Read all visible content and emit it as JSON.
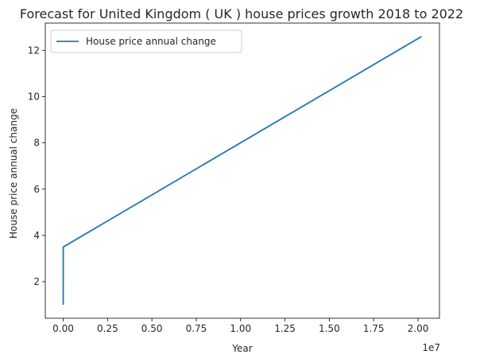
{
  "chart_data": {
    "type": "line",
    "title": "Forecast for United Kingdom ( UK ) house prices growth 2018 to 2022",
    "xlabel": "Year",
    "ylabel": "House price annual change",
    "x_offset_label": "1e7",
    "xlim": [
      -1010000,
      21210000
    ],
    "ylim": [
      0.42,
      13.18
    ],
    "x_ticks": [
      0,
      2500000,
      5000000,
      7500000,
      10000000,
      12500000,
      15000000,
      17500000,
      20000000
    ],
    "x_tick_labels": [
      "0.00",
      "0.25",
      "0.50",
      "0.75",
      "1.00",
      "1.25",
      "1.50",
      "1.75",
      "2.00"
    ],
    "y_ticks": [
      2,
      4,
      6,
      8,
      10,
      12
    ],
    "y_tick_labels": [
      "2",
      "4",
      "6",
      "8",
      "10",
      "12"
    ],
    "grid": false,
    "legend_position": "top-left",
    "series": [
      {
        "name": "House price annual change",
        "color": "#1f77b4",
        "x": [
          0,
          2018,
          20200000
        ],
        "y": [
          1.0,
          3.5,
          12.6
        ]
      }
    ]
  }
}
